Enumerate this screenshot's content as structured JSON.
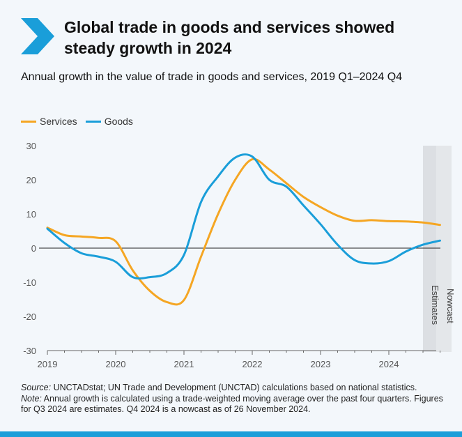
{
  "header": {
    "title": "Global trade in goods and services showed steady growth in 2024",
    "subtitle": "Annual growth in the value of trade in goods and services, 2019 Q1–2024 Q4"
  },
  "colors": {
    "services": "#f5a623",
    "goods": "#1a9ed9",
    "accent": "#1a9ed9",
    "shade": "#d9dde1"
  },
  "icons": {
    "title_marker": "chevron-right-icon"
  },
  "chart_data": {
    "type": "line",
    "x": [
      "2019 Q1",
      "2019 Q2",
      "2019 Q3",
      "2019 Q4",
      "2020 Q1",
      "2020 Q2",
      "2020 Q3",
      "2020 Q4",
      "2021 Q1",
      "2021 Q2",
      "2021 Q3",
      "2021 Q4",
      "2022 Q1",
      "2022 Q2",
      "2022 Q3",
      "2022 Q4",
      "2023 Q1",
      "2023 Q2",
      "2023 Q3",
      "2023 Q4",
      "2024 Q1",
      "2024 Q2",
      "2024 Q3",
      "2024 Q4"
    ],
    "series": [
      {
        "name": "Services",
        "values": [
          6,
          3.8,
          3.4,
          3.0,
          2.0,
          -6.5,
          -12.5,
          -15.8,
          -15.2,
          -2.5,
          10.0,
          20.0,
          26.0,
          23.0,
          19.0,
          15.0,
          12.0,
          9.5,
          8.0,
          8.2,
          7.9,
          7.8,
          7.5,
          6.8
        ]
      },
      {
        "name": "Goods",
        "values": [
          5.7,
          1.5,
          -1.5,
          -2.5,
          -4.0,
          -8.5,
          -8.5,
          -7.3,
          -2.0,
          13.5,
          21.0,
          26.5,
          26.8,
          20.0,
          18.0,
          12.5,
          7.0,
          1.0,
          -3.5,
          -4.5,
          -3.8,
          -1.0,
          1.0,
          2.2
        ]
      }
    ],
    "xticks": [
      "2019",
      "2020",
      "2021",
      "2022",
      "2023",
      "2024"
    ],
    "yticks": [
      "30",
      "20",
      "10",
      "0",
      "-10",
      "-20",
      "-30"
    ],
    "ylim": [
      -30,
      30
    ],
    "legend_position": "top-left",
    "grid": false,
    "annotations": {
      "estimates_label": "Estimates",
      "nowcast_label": "Nowcast"
    }
  },
  "footnote": {
    "source_lead": "Source:",
    "source_text": " UNCTADstat; UN Trade and Development (UNCTAD) calculations based on national statistics.",
    "note_lead": "Note:",
    "note_text": " Annual growth is calculated using a trade-weighted moving average over the past four quarters. Figures for Q3 2024 are estimates. Q4 2024 is a nowcast as of 26 November 2024."
  }
}
